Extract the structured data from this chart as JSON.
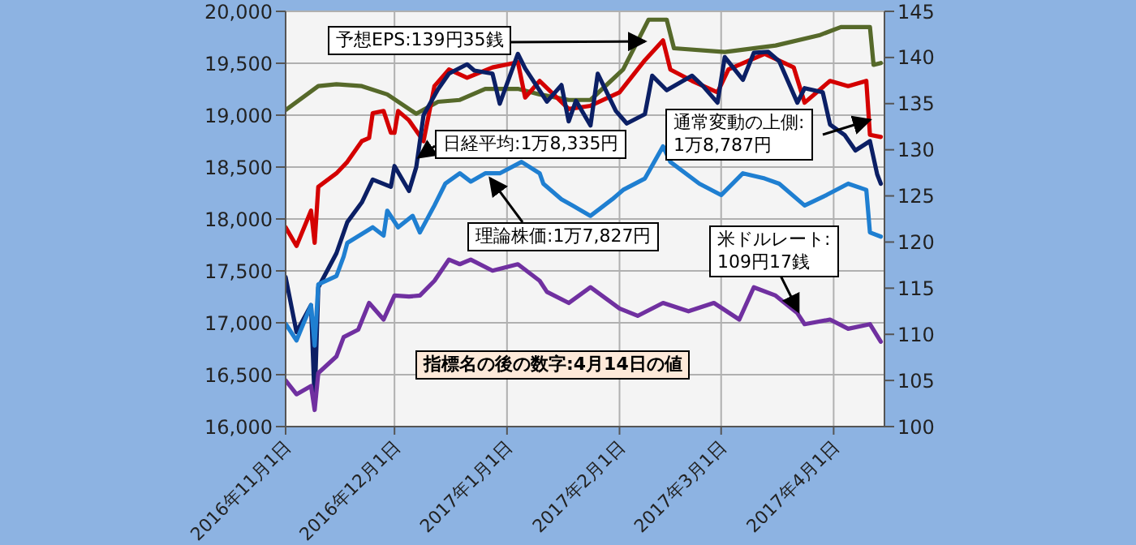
{
  "chart_data": {
    "type": "line",
    "grid": true,
    "line_style": "solid",
    "xlim": [
      "2016-11-01",
      "2017-04-15"
    ],
    "xticks": [
      {
        "value": "2016-11-01",
        "label": "2016年11月1日"
      },
      {
        "value": "2016-12-01",
        "label": "2016年12月1日"
      },
      {
        "value": "2017-01-01",
        "label": "2017年1月1日"
      },
      {
        "value": "2017-02-01",
        "label": "2017年2月1日"
      },
      {
        "value": "2017-03-01",
        "label": "2017年3月1日"
      },
      {
        "value": "2017-04-01",
        "label": "2017年4月1日"
      }
    ],
    "ylim": [
      16000,
      20000
    ],
    "yticks": [
      {
        "value": 16000,
        "label": "16,000"
      },
      {
        "value": 16500,
        "label": "16,500"
      },
      {
        "value": 17000,
        "label": "17,000"
      },
      {
        "value": 17500,
        "label": "17,500"
      },
      {
        "value": 18000,
        "label": "18,000"
      },
      {
        "value": 18500,
        "label": "18,500"
      },
      {
        "value": 19000,
        "label": "19,000"
      },
      {
        "value": 19500,
        "label": "19,500"
      },
      {
        "value": 20000,
        "label": "20,000"
      }
    ],
    "y2lim": [
      100,
      145
    ],
    "y2ticks": [
      100,
      105,
      110,
      115,
      120,
      125,
      130,
      135,
      140,
      145
    ],
    "series": [
      {
        "color": "#56692a",
        "axis": "y2",
        "x": [
          "2016-11-01",
          "2016-11-10",
          "2016-11-15",
          "2016-11-22",
          "2016-11-29",
          "2016-12-07",
          "2016-12-13",
          "2016-12-19",
          "2016-12-26",
          "2017-01-04",
          "2017-01-10",
          "2017-01-18",
          "2017-01-24",
          "2017-02-02",
          "2017-02-09",
          "2017-02-14",
          "2017-02-16",
          "2017-03-02",
          "2017-03-16",
          "2017-03-28",
          "2017-04-03",
          "2017-04-11",
          "2017-04-12",
          "2017-04-14"
        ],
        "values": [
          134.3,
          136.9,
          137.1,
          136.9,
          136.0,
          133.9,
          135.2,
          135.4,
          136.6,
          136.6,
          136.0,
          135.4,
          135.4,
          138.7,
          144.1,
          144.1,
          141.0,
          140.6,
          141.3,
          142.4,
          143.3,
          143.3,
          139.2,
          139.4
        ]
      },
      {
        "color": "#d40000",
        "x": [
          "2016-11-01",
          "2016-11-04",
          "2016-11-08",
          "2016-11-09",
          "2016-11-10",
          "2016-11-15",
          "2016-11-18",
          "2016-11-22",
          "2016-11-24",
          "2016-11-25",
          "2016-11-28",
          "2016-11-30",
          "2016-12-01",
          "2016-12-02",
          "2016-12-05",
          "2016-12-07",
          "2016-12-09",
          "2016-12-12",
          "2016-12-16",
          "2016-12-21",
          "2016-12-28",
          "2017-01-04",
          "2017-01-06",
          "2017-01-10",
          "2017-01-18",
          "2017-01-24",
          "2017-02-01",
          "2017-02-08",
          "2017-02-13",
          "2017-02-15",
          "2017-02-21",
          "2017-02-28",
          "2017-03-03",
          "2017-03-13",
          "2017-03-21",
          "2017-03-24",
          "2017-03-31",
          "2017-04-05",
          "2017-04-10",
          "2017-04-11",
          "2017-04-14"
        ],
        "values": [
          17920,
          17740,
          18080,
          17770,
          18310,
          18440,
          18550,
          18750,
          18780,
          19020,
          19040,
          18830,
          18830,
          19040,
          18950,
          18850,
          18750,
          19280,
          19440,
          19360,
          19460,
          19510,
          19170,
          19330,
          19060,
          19090,
          19220,
          19530,
          19720,
          19440,
          19330,
          19220,
          19440,
          19590,
          19460,
          19120,
          19330,
          19280,
          19330,
          18810,
          18790
        ]
      },
      {
        "color": "#0b1f65",
        "x": [
          "2016-11-01",
          "2016-11-04",
          "2016-11-08",
          "2016-11-09",
          "2016-11-10",
          "2016-11-15",
          "2016-11-18",
          "2016-11-22",
          "2016-11-25",
          "2016-11-30",
          "2016-12-01",
          "2016-12-05",
          "2016-12-07",
          "2016-12-09",
          "2016-12-13",
          "2016-12-16",
          "2016-12-21",
          "2016-12-23",
          "2016-12-28",
          "2016-12-30",
          "2017-01-04",
          "2017-01-06",
          "2017-01-12",
          "2017-01-16",
          "2017-01-18",
          "2017-01-20",
          "2017-01-24",
          "2017-01-26",
          "2017-01-31",
          "2017-02-03",
          "2017-02-08",
          "2017-02-10",
          "2017-02-14",
          "2017-02-21",
          "2017-02-24",
          "2017-02-28",
          "2017-03-02",
          "2017-03-07",
          "2017-03-10",
          "2017-03-14",
          "2017-03-17",
          "2017-03-22",
          "2017-03-24",
          "2017-03-29",
          "2017-03-31",
          "2017-04-04",
          "2017-04-07",
          "2017-04-11",
          "2017-04-13",
          "2017-04-14"
        ],
        "values": [
          17440,
          16910,
          17170,
          16250,
          17340,
          17670,
          17970,
          18160,
          18380,
          18310,
          18510,
          18270,
          18500,
          19000,
          19250,
          19400,
          19490,
          19430,
          19400,
          19110,
          19590,
          19450,
          19130,
          19290,
          18940,
          19140,
          18900,
          19400,
          19040,
          18920,
          19010,
          19380,
          19240,
          19380,
          19280,
          19120,
          19560,
          19340,
          19600,
          19610,
          19520,
          19120,
          19260,
          19220,
          18910,
          18810,
          18660,
          18750,
          18430,
          18340
        ]
      },
      {
        "color": "#1f7fd1",
        "x": [
          "2016-11-01",
          "2016-11-04",
          "2016-11-08",
          "2016-11-09",
          "2016-11-10",
          "2016-11-15",
          "2016-11-17",
          "2016-11-18",
          "2016-11-25",
          "2016-11-28",
          "2016-11-29",
          "2016-12-02",
          "2016-12-06",
          "2016-12-08",
          "2016-12-12",
          "2016-12-15",
          "2016-12-19",
          "2016-12-22",
          "2016-12-26",
          "2016-12-30",
          "2017-01-05",
          "2017-01-10",
          "2017-01-11",
          "2017-01-16",
          "2017-01-19",
          "2017-01-24",
          "2017-01-30",
          "2017-02-02",
          "2017-02-08",
          "2017-02-13",
          "2017-02-15",
          "2017-02-23",
          "2017-03-01",
          "2017-03-07",
          "2017-03-13",
          "2017-03-17",
          "2017-03-24",
          "2017-03-30",
          "2017-04-05",
          "2017-04-10",
          "2017-04-11",
          "2017-04-14"
        ],
        "values": [
          16990,
          16830,
          17170,
          16780,
          17370,
          17450,
          17640,
          17770,
          17920,
          17840,
          18080,
          17920,
          18030,
          17870,
          18130,
          18340,
          18440,
          18360,
          18440,
          18440,
          18550,
          18440,
          18340,
          18190,
          18130,
          18030,
          18190,
          18280,
          18390,
          18700,
          18550,
          18340,
          18230,
          18440,
          18390,
          18340,
          18130,
          18230,
          18340,
          18280,
          17870,
          17830
        ]
      },
      {
        "color": "#7030a0",
        "axis": "y2",
        "x": [
          "2016-11-01",
          "2016-11-04",
          "2016-11-08",
          "2016-11-09",
          "2016-11-10",
          "2016-11-15",
          "2016-11-17",
          "2016-11-21",
          "2016-11-24",
          "2016-11-28",
          "2016-12-01",
          "2016-12-05",
          "2016-12-08",
          "2016-12-12",
          "2016-12-16",
          "2016-12-19",
          "2016-12-22",
          "2016-12-28",
          "2017-01-04",
          "2017-01-10",
          "2017-01-12",
          "2017-01-18",
          "2017-01-24",
          "2017-02-01",
          "2017-02-06",
          "2017-02-13",
          "2017-02-20",
          "2017-02-27",
          "2017-03-06",
          "2017-03-10",
          "2017-03-16",
          "2017-03-22",
          "2017-03-24",
          "2017-03-31",
          "2017-04-05",
          "2017-04-11",
          "2017-04-14"
        ],
        "values": [
          105.0,
          103.5,
          104.4,
          101.8,
          105.8,
          107.6,
          109.7,
          110.5,
          113.4,
          111.6,
          114.2,
          114.1,
          114.2,
          115.8,
          118.1,
          117.6,
          118.1,
          116.9,
          117.6,
          115.8,
          114.6,
          113.4,
          115.1,
          112.8,
          112.0,
          113.4,
          112.5,
          113.4,
          111.6,
          115.1,
          114.2,
          112.3,
          111.1,
          111.6,
          110.6,
          111.1,
          109.2
        ]
      }
    ],
    "annotations": [
      {
        "text": "予想EPS:139円35銭",
        "x": "2017-02-08",
        "y": 19710
      },
      "日経平均:1万8,335円",
      "理論株価:1万7,827円",
      "通常変動の上側:\n1万8,787円",
      "米ドルレート:\n109円17銭",
      "指標名の後の数字:4月14日の値"
    ]
  }
}
